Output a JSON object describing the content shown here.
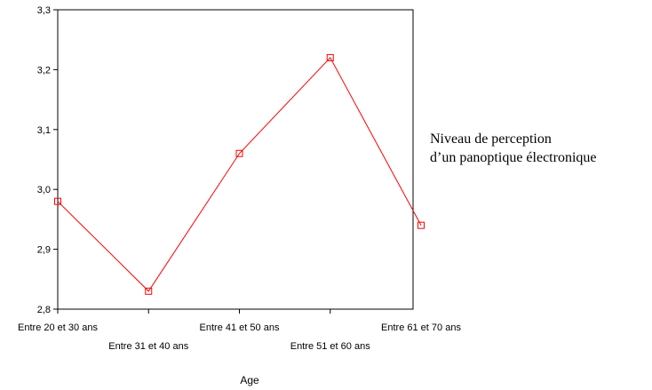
{
  "chart_data": {
    "type": "line",
    "categories": [
      "Entre 20 et 30 ans",
      "Entre 31 et 40 ans",
      "Entre 41 et 50 ans",
      "Entre 51 et 60 ans",
      "Entre 61 et 70 ans"
    ],
    "series": [
      {
        "values": [
          2.98,
          2.83,
          3.06,
          3.22,
          2.94
        ],
        "color": "#ff0000",
        "marker": "square-open"
      }
    ],
    "xlabel": "Age",
    "ylabel": "",
    "ylim": [
      2.8,
      3.3
    ],
    "yticks": [
      "2,8",
      "2,9",
      "3,0",
      "3,1",
      "3,2",
      "3,3"
    ],
    "grid": false,
    "legend_text": [
      "Niveau de perception",
      "d’un panoptique électronique"
    ],
    "legend_position": "right"
  }
}
